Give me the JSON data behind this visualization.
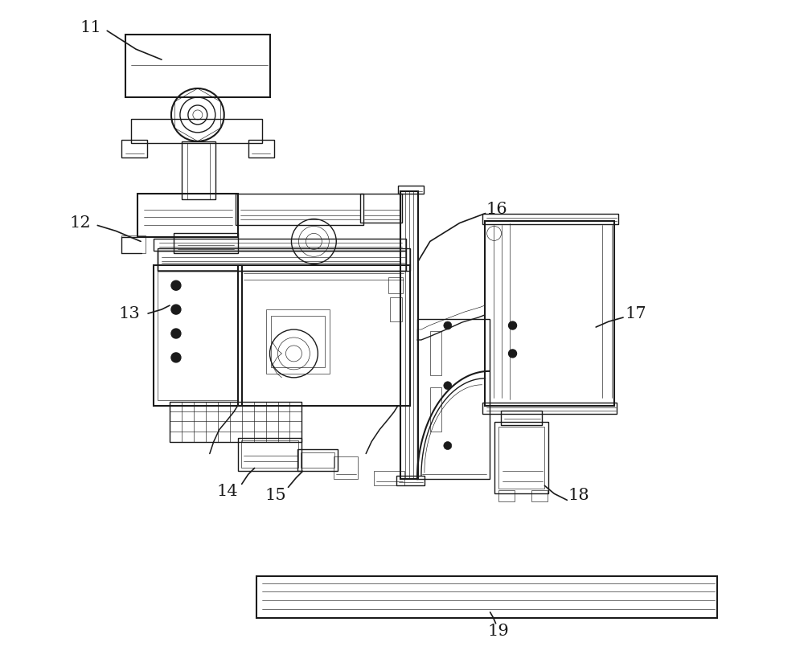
{
  "bg_color": "#ffffff",
  "lc": "#1a1a1a",
  "lw": 1.0,
  "lw_t": 0.45,
  "lw_k": 1.5,
  "fig_w": 10.0,
  "fig_h": 8.35,
  "dpi": 100
}
